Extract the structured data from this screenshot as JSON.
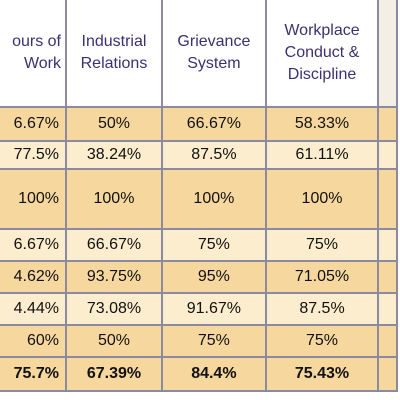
{
  "table": {
    "header": [
      "ours of Work",
      "Industrial Relations",
      "Grievance System",
      "Workplace Conduct & Discipline"
    ],
    "rows": [
      [
        "6.67%",
        "50%",
        "66.67%",
        "58.33%"
      ],
      [
        "77.5%",
        "38.24%",
        "87.5%",
        "61.11%"
      ],
      [
        "100%",
        "100%",
        "100%",
        "100%"
      ],
      [
        "6.67%",
        "66.67%",
        "75%",
        "75%"
      ],
      [
        "4.62%",
        "93.75%",
        "95%",
        "71.05%"
      ],
      [
        "4.44%",
        "73.08%",
        "91.67%",
        "87.5%"
      ],
      [
        "60%",
        "50%",
        "75%",
        "75%"
      ],
      [
        "75.7%",
        "67.39%",
        "84.4%",
        "75.43%"
      ]
    ]
  }
}
